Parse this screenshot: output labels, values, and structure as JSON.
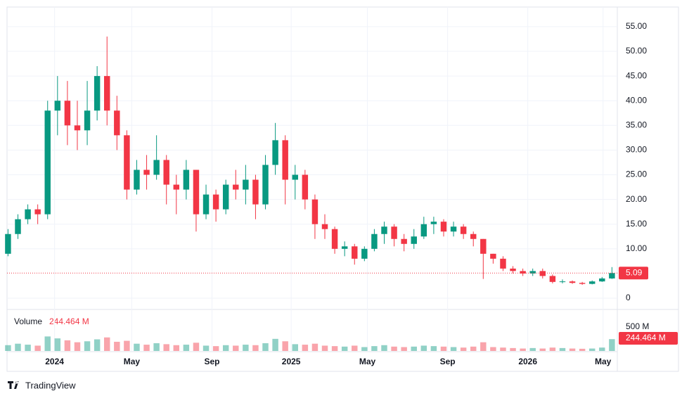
{
  "chart_data": {
    "type": "candlestick",
    "open": [
      9,
      13,
      16,
      18,
      17,
      38,
      40,
      35,
      34,
      38,
      45,
      38,
      33,
      22,
      26,
      25,
      28,
      23,
      22,
      26,
      17,
      21,
      18,
      23,
      22,
      24,
      19,
      27,
      32,
      24,
      25,
      20,
      15,
      14,
      10,
      10.5,
      8,
      10,
      13,
      14.5,
      12,
      11,
      12.5,
      15,
      15.5,
      13.5,
      14.5,
      13,
      12,
      9,
      8,
      6,
      5.5,
      5,
      5.5,
      4.5,
      3.3,
      3.4,
      3.1,
      2.9,
      3.4,
      4.0
    ],
    "high": [
      14,
      17,
      19,
      19,
      40,
      45,
      44,
      40,
      44,
      47,
      53,
      41,
      34,
      28,
      29,
      33,
      29,
      25,
      28,
      26,
      23,
      22,
      24,
      26,
      27,
      25,
      29,
      35.5,
      33,
      27,
      26,
      21,
      17,
      14.5,
      11.5,
      11,
      10.5,
      14,
      15.5,
      15,
      13,
      14,
      16.5,
      16.5,
      16,
      15.5,
      15,
      13.5,
      12,
      9,
      8.5,
      6.5,
      6,
      6,
      6,
      4.8,
      3.8,
      3.6,
      3.3,
      3.6,
      4.3,
      6.3
    ],
    "low": [
      8.5,
      12,
      15,
      15,
      16,
      33,
      31,
      30,
      31,
      36,
      35,
      30,
      20,
      21,
      22,
      24,
      19,
      17,
      20,
      13.5,
      16,
      15.5,
      17,
      20,
      19,
      16,
      18,
      25,
      19,
      20,
      18,
      12,
      12,
      9,
      8.5,
      6.8,
      7.5,
      9.5,
      11,
      10.5,
      9.5,
      10,
      12,
      13,
      12.5,
      12.5,
      12,
      10.5,
      3.9,
      7,
      5.5,
      5,
      4.5,
      4.5,
      4,
      3,
      3,
      2.9,
      2.7,
      2.8,
      3.3,
      3.9
    ],
    "close": [
      13,
      16,
      18,
      17,
      38,
      40,
      35,
      34,
      38,
      45,
      38,
      33,
      22,
      26,
      25,
      28,
      23,
      22,
      26,
      17,
      21,
      18,
      23,
      22,
      24,
      19,
      27,
      32,
      24,
      25,
      20,
      15,
      14,
      10,
      10.5,
      8,
      10,
      13,
      14.5,
      12,
      11,
      12.5,
      15,
      15.5,
      13.5,
      14.5,
      13,
      12,
      9,
      8,
      6,
      5.5,
      5,
      5.5,
      4.5,
      3.3,
      3.4,
      3.1,
      2.9,
      3.4,
      4.0,
      5.09
    ],
    "up_color": "#089981",
    "down_color": "#f23645",
    "ylim": [
      -2.28,
      58.69
    ],
    "yticks": [
      0,
      {
        "value": 10,
        "label": "10.00"
      },
      {
        "value": 15,
        "label": "15.00"
      },
      {
        "value": 20,
        "label": "20.00"
      },
      {
        "value": 25,
        "label": "25.00"
      },
      {
        "value": 30,
        "label": "30.00"
      },
      {
        "value": 35,
        "label": "35.00"
      },
      {
        "value": 40,
        "label": "40.00"
      },
      {
        "value": 45,
        "label": "45.00"
      },
      {
        "value": 50,
        "label": "50.00"
      },
      {
        "value": 55,
        "label": "55.00"
      }
    ],
    "xlim": [
      -0.1,
      61.4
    ],
    "xticks": [
      {
        "value": 4.7,
        "label": "2024"
      },
      {
        "value": 12.5,
        "label": "May"
      },
      {
        "value": 20.6,
        "label": "Sep"
      },
      {
        "value": 28.6,
        "label": "2025"
      },
      {
        "value": 36.3,
        "label": "May"
      },
      {
        "value": 44.4,
        "label": "Sep"
      },
      {
        "value": 52.5,
        "label": "2026"
      },
      {
        "value": 60.1,
        "label": "May"
      }
    ],
    "grid": true,
    "volume": {
      "name": "Volume",
      "values": [
        120,
        150,
        130,
        110,
        300,
        260,
        220,
        180,
        200,
        240,
        280,
        190,
        210,
        150,
        130,
        160,
        140,
        120,
        130,
        170,
        110,
        100,
        120,
        110,
        130,
        120,
        160,
        250,
        200,
        140,
        130,
        150,
        110,
        100,
        90,
        110,
        80,
        100,
        120,
        90,
        80,
        90,
        110,
        100,
        90,
        80,
        70,
        90,
        180,
        80,
        70,
        60,
        50,
        60,
        50,
        70,
        60,
        50,
        45,
        50,
        70,
        244.464
      ],
      "last_value_label": "244.464 M",
      "ylim": [
        0,
        800
      ],
      "yticks": [
        {
          "value": 500,
          "label": "500 M"
        }
      ]
    }
  },
  "footer": {
    "brand": "TradingView"
  }
}
